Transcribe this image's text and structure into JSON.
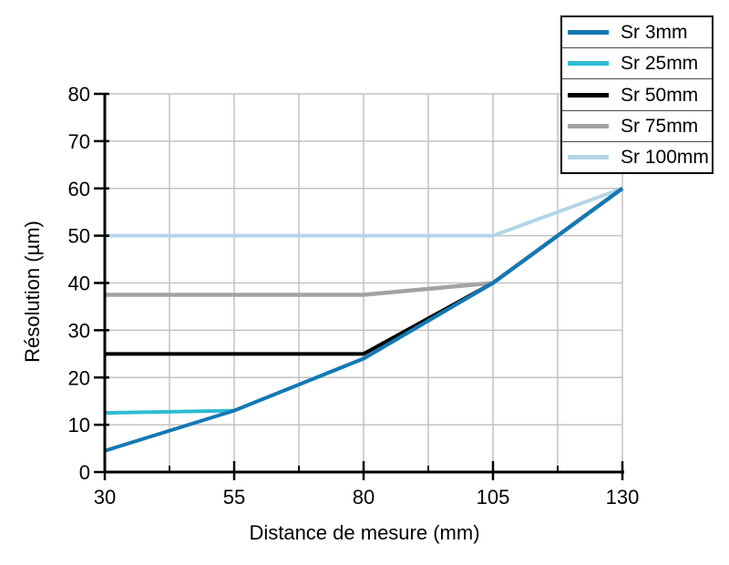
{
  "chart_data": {
    "type": "line",
    "title": "",
    "xlabel": "Distance de mesure (mm)",
    "ylabel": "Résolution (µm)",
    "xlim": [
      30,
      130
    ],
    "ylim": [
      0,
      80
    ],
    "x_ticks": [
      30,
      55,
      80,
      105,
      130
    ],
    "y_ticks": [
      0,
      10,
      20,
      30,
      40,
      50,
      60,
      70,
      80
    ],
    "x_gridlines": [
      30,
      42.5,
      55,
      67.5,
      80,
      92.5,
      105,
      117.5,
      130
    ],
    "y_gridlines": [
      0,
      10,
      20,
      30,
      40,
      50,
      60,
      70,
      80
    ],
    "grid_on": true,
    "grid_color": "#c2c2c2",
    "axis_color": "#000000",
    "legend_position": "top-right",
    "series": [
      {
        "name": "Sr 3mm",
        "color": "#1478b4",
        "stroke_width": 4,
        "points": [
          [
            30,
            4.5
          ],
          [
            55,
            13
          ],
          [
            80,
            24
          ],
          [
            105,
            40
          ],
          [
            130,
            60
          ]
        ]
      },
      {
        "name": "Sr 25mm",
        "color": "#2fbcd4",
        "stroke_width": 4,
        "points": [
          [
            30,
            12.5
          ],
          [
            55,
            13
          ],
          [
            80,
            24
          ],
          [
            105,
            40
          ],
          [
            130,
            60
          ]
        ]
      },
      {
        "name": "Sr 50mm",
        "color": "#000000",
        "stroke_width": 4,
        "points": [
          [
            30,
            25
          ],
          [
            80,
            25
          ],
          [
            105,
            40
          ],
          [
            130,
            60
          ]
        ]
      },
      {
        "name": "Sr 75mm",
        "color": "#a3a3a3",
        "stroke_width": 4.5,
        "points": [
          [
            30,
            37.5
          ],
          [
            80,
            37.5
          ],
          [
            105,
            40
          ],
          [
            130,
            60
          ]
        ]
      },
      {
        "name": "Sr 100mm",
        "color": "#b3d6e8",
        "stroke_width": 4,
        "points": [
          [
            30,
            50
          ],
          [
            105,
            50
          ],
          [
            130,
            60
          ]
        ]
      }
    ]
  }
}
